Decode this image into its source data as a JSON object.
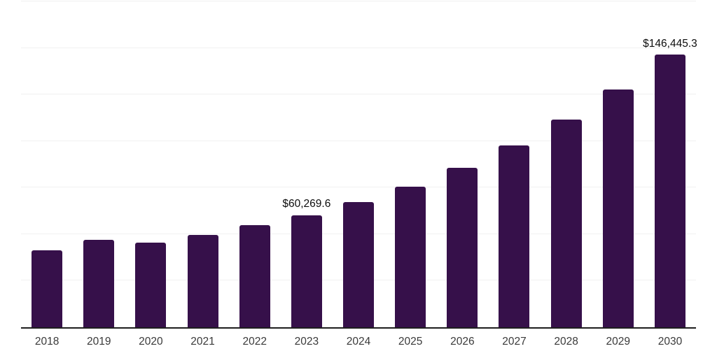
{
  "chart_data": {
    "type": "bar",
    "title": "",
    "xlabel": "",
    "ylabel": "",
    "categories": [
      "2018",
      "2019",
      "2020",
      "2021",
      "2022",
      "2023",
      "2024",
      "2025",
      "2026",
      "2027",
      "2028",
      "2029",
      "2030"
    ],
    "values": [
      41200,
      46800,
      45300,
      49500,
      54700,
      60269.6,
      67400,
      75600,
      85700,
      97600,
      111400,
      127800,
      146445.3
    ],
    "data_labels": {
      "2023": "$60,269.6",
      "2030": "$146,445.3"
    },
    "ylim": [
      0,
      175000
    ],
    "gridline_step": 25000,
    "grid": "horizontal",
    "legend": "none",
    "bar_color": "#36104A",
    "axis_line_color": "#1f1f1f",
    "gridline_color": "#f0f0f0",
    "label_color": "#0d0d0d",
    "tick_label_color": "#3a3a3a",
    "background_color": "#ffffff"
  }
}
